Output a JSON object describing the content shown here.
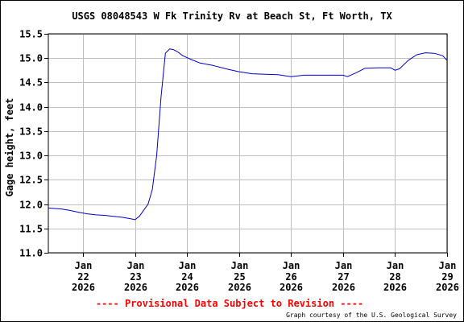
{
  "chart_data": {
    "type": "line",
    "title": "USGS 08048543 W Fk Trinity Rv at Beach St, Ft Worth, TX",
    "ylabel": "Gage height, feet",
    "xlabel": "",
    "ylim": [
      11.0,
      15.5
    ],
    "yticks": [
      "11.0",
      "11.5",
      "12.0",
      "12.5",
      "13.0",
      "13.5",
      "14.0",
      "14.5",
      "15.0",
      "15.5"
    ],
    "xlim": [
      "2026-01-21T20:00",
      "2026-01-29T12:00"
    ],
    "xticks": [
      {
        "date": "2026-01-22T12:00",
        "month": "Jan",
        "day": "22",
        "year": "2026"
      },
      {
        "date": "2026-01-23T12:00",
        "month": "Jan",
        "day": "23",
        "year": "2026"
      },
      {
        "date": "2026-01-24T12:00",
        "month": "Jan",
        "day": "24",
        "year": "2026"
      },
      {
        "date": "2026-01-25T12:00",
        "month": "Jan",
        "day": "25",
        "year": "2026"
      },
      {
        "date": "2026-01-26T12:00",
        "month": "Jan",
        "day": "26",
        "year": "2026"
      },
      {
        "date": "2026-01-27T12:00",
        "month": "Jan",
        "day": "27",
        "year": "2026"
      },
      {
        "date": "2026-01-28T12:00",
        "month": "Jan",
        "day": "28",
        "year": "2026"
      },
      {
        "date": "2026-01-29T12:00",
        "month": "Jan",
        "day": "29",
        "year": "2026"
      }
    ],
    "grid": true,
    "series": [
      {
        "color": "#0000cc",
        "x": [
          "2026-01-21T20:00",
          "2026-01-22T02:00",
          "2026-01-22T06:00",
          "2026-01-22T10:00",
          "2026-01-22T14:00",
          "2026-01-22T18:00",
          "2026-01-22T22:00",
          "2026-01-23T02:00",
          "2026-01-23T06:00",
          "2026-01-23T10:00",
          "2026-01-23T12:00",
          "2026-01-23T14:00",
          "2026-01-23T18:00",
          "2026-01-23T20:00",
          "2026-01-23T22:00",
          "2026-01-24T00:00",
          "2026-01-24T02:00",
          "2026-01-24T04:00",
          "2026-01-24T06:00",
          "2026-01-24T08:00",
          "2026-01-24T10:00",
          "2026-01-24T14:00",
          "2026-01-24T18:00",
          "2026-01-25T00:00",
          "2026-01-25T06:00",
          "2026-01-25T12:00",
          "2026-01-25T18:00",
          "2026-01-26T00:00",
          "2026-01-26T06:00",
          "2026-01-26T12:00",
          "2026-01-26T18:00",
          "2026-01-27T00:00",
          "2026-01-27T06:00",
          "2026-01-27T12:00",
          "2026-01-27T14:00",
          "2026-01-27T18:00",
          "2026-01-27T22:00",
          "2026-01-28T04:00",
          "2026-01-28T10:00",
          "2026-01-28T12:00",
          "2026-01-28T14:00",
          "2026-01-28T18:00",
          "2026-01-28T22:00",
          "2026-01-29T02:00",
          "2026-01-29T06:00",
          "2026-01-29T10:00",
          "2026-01-29T12:00"
        ],
        "y": [
          11.92,
          11.9,
          11.87,
          11.83,
          11.8,
          11.78,
          11.77,
          11.75,
          11.73,
          11.7,
          11.68,
          11.75,
          12.0,
          12.3,
          13.0,
          14.2,
          15.1,
          15.19,
          15.17,
          15.12,
          15.05,
          14.97,
          14.9,
          14.85,
          14.78,
          14.72,
          14.68,
          14.67,
          14.66,
          14.62,
          14.65,
          14.65,
          14.65,
          14.65,
          14.62,
          14.7,
          14.79,
          14.8,
          14.8,
          14.75,
          14.78,
          14.95,
          15.07,
          15.11,
          15.1,
          15.05,
          14.95
        ]
      }
    ],
    "notice": "---- Provisional Data Subject to Revision ----",
    "notice_color": "#ff0000",
    "credit": "Graph courtesy of the U.S. Geological Survey",
    "axis_color": "#000000",
    "grid_color": "#c0c0c0",
    "background": "#ffffff"
  }
}
